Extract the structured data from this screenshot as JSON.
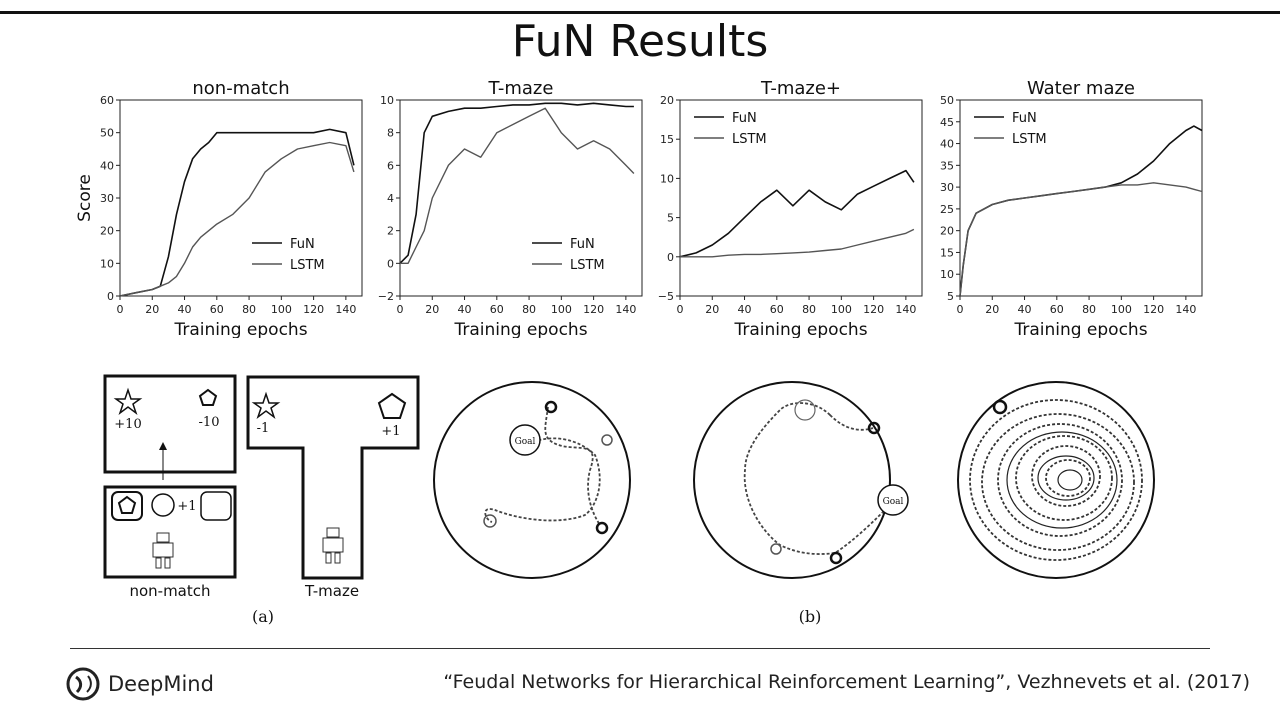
{
  "title": "FuN Results",
  "chart_data": [
    {
      "type": "line",
      "title": "non-match",
      "xlabel": "Training epochs",
      "ylabel": "Score",
      "xlim": [
        0,
        150
      ],
      "ylim": [
        0,
        60
      ],
      "xticks": [
        "0",
        "20",
        "40",
        "60",
        "80",
        "100",
        "120",
        "140"
      ],
      "yticks": [
        "0",
        "10",
        "20",
        "30",
        "40",
        "50",
        "60"
      ],
      "legend": "bottom-right",
      "series": [
        {
          "name": "FuN",
          "x": [
            0,
            10,
            20,
            25,
            30,
            35,
            40,
            45,
            50,
            55,
            60,
            70,
            80,
            90,
            100,
            110,
            120,
            130,
            140,
            145
          ],
          "y": [
            0,
            1,
            2,
            3,
            12,
            25,
            35,
            42,
            45,
            47,
            50,
            50,
            50,
            50,
            50,
            50,
            50,
            51,
            50,
            40
          ]
        },
        {
          "name": "LSTM",
          "x": [
            0,
            10,
            20,
            25,
            30,
            35,
            40,
            45,
            50,
            55,
            60,
            70,
            80,
            90,
            100,
            110,
            120,
            130,
            140,
            145
          ],
          "y": [
            0,
            1,
            2,
            3,
            4,
            6,
            10,
            15,
            18,
            20,
            22,
            25,
            30,
            38,
            42,
            45,
            46,
            47,
            46,
            38
          ]
        }
      ]
    },
    {
      "type": "line",
      "title": "T-maze",
      "xlabel": "Training epochs",
      "ylabel": "",
      "xlim": [
        0,
        150
      ],
      "ylim": [
        -2,
        10
      ],
      "xticks": [
        "0",
        "20",
        "40",
        "60",
        "80",
        "100",
        "120",
        "140"
      ],
      "yticks": [
        "−2",
        "0",
        "2",
        "4",
        "6",
        "8",
        "10"
      ],
      "legend": "bottom-right",
      "series": [
        {
          "name": "FuN",
          "x": [
            0,
            5,
            10,
            15,
            20,
            30,
            40,
            50,
            60,
            70,
            80,
            90,
            100,
            110,
            120,
            130,
            140,
            145
          ],
          "y": [
            0,
            0.5,
            3,
            8,
            9,
            9.3,
            9.5,
            9.5,
            9.6,
            9.7,
            9.7,
            9.8,
            9.8,
            9.7,
            9.8,
            9.7,
            9.6,
            9.6
          ]
        },
        {
          "name": "LSTM",
          "x": [
            0,
            5,
            10,
            15,
            20,
            30,
            40,
            50,
            60,
            70,
            80,
            90,
            100,
            110,
            120,
            130,
            140,
            145
          ],
          "y": [
            0,
            0,
            1,
            2,
            4,
            6,
            7,
            6.5,
            8,
            8.5,
            9,
            9.5,
            8,
            7,
            7.5,
            7,
            6,
            5.5
          ]
        }
      ]
    },
    {
      "type": "line",
      "title": "T-maze+",
      "xlabel": "Training epochs",
      "ylabel": "",
      "xlim": [
        0,
        150
      ],
      "ylim": [
        -5,
        20
      ],
      "xticks": [
        "0",
        "20",
        "40",
        "60",
        "80",
        "100",
        "120",
        "140"
      ],
      "yticks": [
        "−5",
        "0",
        "5",
        "10",
        "15",
        "20"
      ],
      "legend": "top-left",
      "series": [
        {
          "name": "FuN",
          "x": [
            0,
            10,
            20,
            30,
            40,
            50,
            60,
            70,
            80,
            90,
            100,
            110,
            120,
            130,
            140,
            145
          ],
          "y": [
            0,
            0.5,
            1.5,
            3,
            5,
            7,
            8.5,
            6.5,
            8.5,
            7,
            6,
            8,
            9,
            10,
            11,
            9.5
          ]
        },
        {
          "name": "LSTM",
          "x": [
            0,
            10,
            20,
            30,
            40,
            50,
            60,
            70,
            80,
            90,
            100,
            110,
            120,
            130,
            140,
            145
          ],
          "y": [
            0,
            0,
            0,
            0.2,
            0.3,
            0.3,
            0.4,
            0.5,
            0.6,
            0.8,
            1,
            1.5,
            2,
            2.5,
            3,
            3.5
          ]
        }
      ]
    },
    {
      "type": "line",
      "title": "Water maze",
      "xlabel": "Training epochs",
      "ylabel": "",
      "xlim": [
        0,
        150
      ],
      "ylim": [
        5,
        50
      ],
      "xticks": [
        "0",
        "20",
        "40",
        "60",
        "80",
        "100",
        "120",
        "140"
      ],
      "yticks": [
        "5",
        "10",
        "15",
        "20",
        "25",
        "30",
        "35",
        "40",
        "45",
        "50"
      ],
      "legend": "top-left",
      "series": [
        {
          "name": "FuN",
          "x": [
            0,
            2,
            5,
            10,
            20,
            30,
            40,
            50,
            60,
            70,
            80,
            90,
            100,
            110,
            120,
            130,
            140,
            145,
            150
          ],
          "y": [
            5,
            12,
            20,
            24,
            26,
            27,
            27.5,
            28,
            28.5,
            29,
            29.5,
            30,
            31,
            33,
            36,
            40,
            43,
            44,
            43
          ]
        },
        {
          "name": "LSTM",
          "x": [
            0,
            2,
            5,
            10,
            20,
            30,
            40,
            50,
            60,
            70,
            80,
            90,
            100,
            110,
            120,
            130,
            140,
            145,
            150
          ],
          "y": [
            5,
            12,
            20,
            24,
            26,
            27,
            27.5,
            28,
            28.5,
            29,
            29.5,
            30,
            30.5,
            30.5,
            31,
            30.5,
            30,
            29.5,
            29
          ]
        }
      ]
    }
  ],
  "figure_a": {
    "panel1": {
      "reward_star": "+10",
      "reward_pentagon": "-10",
      "reward_circle": "+1",
      "caption": "non-match"
    },
    "panel2": {
      "reward_star": "-1",
      "reward_pentagon": "+1",
      "caption": "T-maze"
    },
    "label": "(a)"
  },
  "figure_b": {
    "goal_label_1": "Goal",
    "goal_label_2": "Goal",
    "label": "(b)"
  },
  "footer": {
    "brand": "DeepMind",
    "citation": "“Feudal Networks for Hierarchical Reinforcement Learning”, Vezhnevets et al. (2017)"
  }
}
